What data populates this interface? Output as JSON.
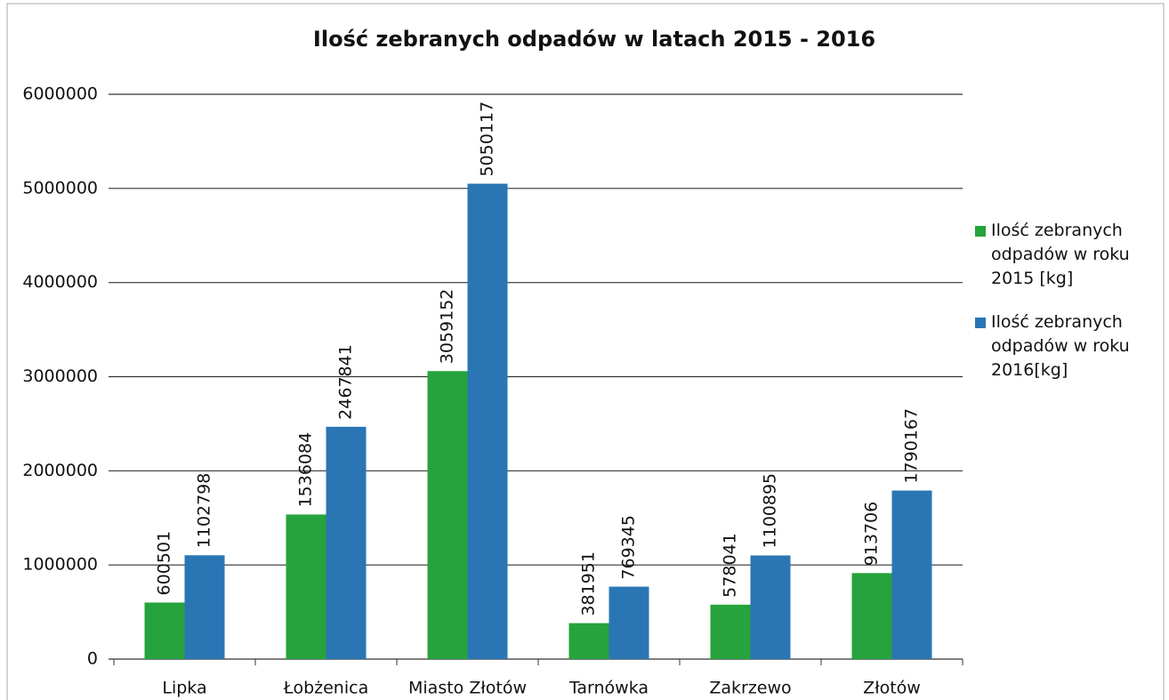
{
  "chart_data": {
    "type": "bar",
    "title": "Ilość zebranych odpadów w latach 2015 - 2016",
    "categories": [
      "Lipka",
      "Łobżenica",
      "Miasto Złotów",
      "Tarnówka",
      "Zakrzewo",
      "Złotów"
    ],
    "series": [
      {
        "name": "Ilość zebranych odpadów w roku 2015 [kg]",
        "color": "#26a33c",
        "values": [
          600501,
          1536084,
          3059152,
          381951,
          578041,
          913706
        ]
      },
      {
        "name": "Ilość zebranych odpadów w roku 2016[kg]",
        "color": "#2a76b4",
        "values": [
          1102798,
          2467841,
          5050117,
          769345,
          1100895,
          1790167
        ]
      }
    ],
    "ylim": [
      0,
      6000000
    ],
    "yticks": [
      0,
      1000000,
      2000000,
      3000000,
      4000000,
      5000000,
      6000000
    ],
    "grid": true,
    "legend": "right"
  }
}
